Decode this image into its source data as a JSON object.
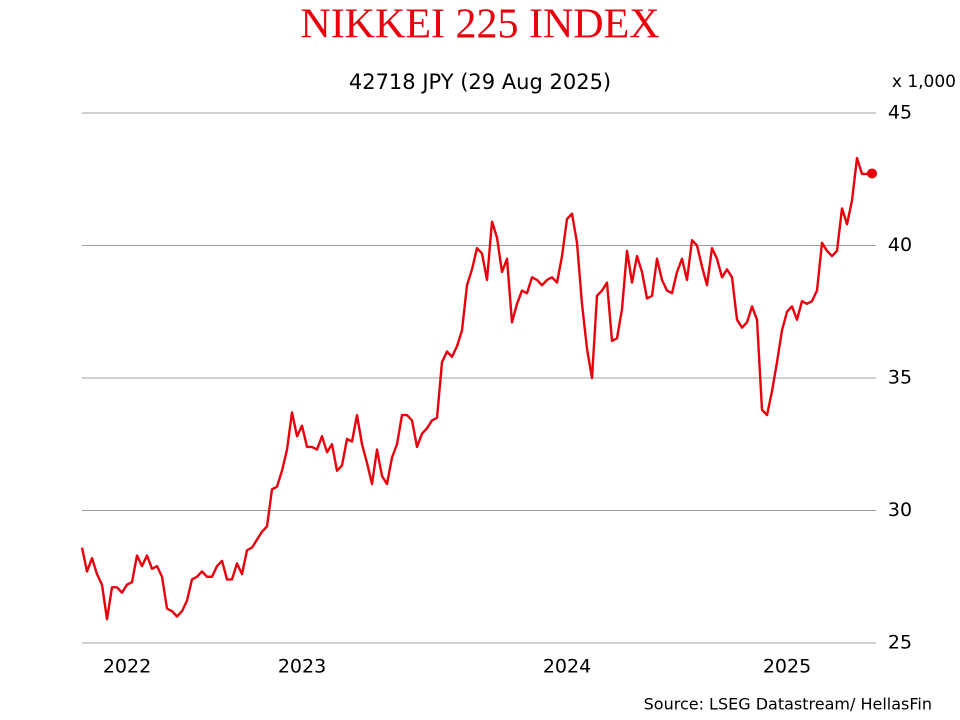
{
  "chart_data": {
    "type": "line",
    "title": "NIKKEI 225 INDEX",
    "subtitle": "42718 JPY (29 Aug 2025)",
    "y_unit_label": "x 1,000",
    "source": "Source: LSEG Datastream/ HellasFin",
    "color": "#e8000b",
    "marker_last": true,
    "grid": true,
    "ylim": [
      25,
      45
    ],
    "yticks": [
      25,
      30,
      35,
      40,
      45
    ],
    "categories": [
      null,
      null,
      null,
      null,
      null,
      null,
      null,
      null,
      null,
      "2022",
      null,
      null,
      null,
      null,
      null,
      null,
      null,
      null,
      null,
      null,
      null,
      null,
      null,
      null,
      null,
      null,
      null,
      null,
      null,
      null,
      null,
      null,
      null,
      null,
      null,
      null,
      null,
      null,
      null,
      null,
      null,
      null,
      null,
      null,
      "2023",
      null,
      null,
      null,
      null,
      null,
      null,
      null,
      null,
      null,
      null,
      null,
      null,
      null,
      null,
      null,
      null,
      null,
      null,
      null,
      null,
      null,
      null,
      null,
      null,
      null,
      null,
      null,
      null,
      null,
      null,
      null,
      null,
      null,
      null,
      null,
      null,
      null,
      null,
      null,
      null,
      null,
      null,
      null,
      null,
      null,
      null,
      null,
      null,
      null,
      null,
      null,
      null,
      "2024",
      null,
      null,
      null,
      null,
      null,
      null,
      null,
      null,
      null,
      null,
      null,
      null,
      null,
      null,
      null,
      null,
      null,
      null,
      null,
      null,
      null,
      null,
      null,
      null,
      null,
      null,
      null,
      null,
      null,
      null,
      null,
      null,
      null,
      null,
      null,
      null,
      null,
      null,
      null,
      null,
      null,
      null,
      null,
      "2025",
      null,
      null,
      null,
      null,
      null,
      null,
      null,
      null,
      null,
      null,
      null,
      null,
      null,
      null,
      null,
      null,
      null
    ],
    "values": [
      28.6,
      27.7,
      28.2,
      27.6,
      27.2,
      25.9,
      27.1,
      27.1,
      26.9,
      27.2,
      27.3,
      28.3,
      27.9,
      28.3,
      27.8,
      27.9,
      27.5,
      26.3,
      26.2,
      26.0,
      26.2,
      26.6,
      27.4,
      27.5,
      27.7,
      27.5,
      27.5,
      27.9,
      28.1,
      27.4,
      27.4,
      28.0,
      27.6,
      28.5,
      28.6,
      28.9,
      29.2,
      29.4,
      30.8,
      30.9,
      31.5,
      32.3,
      33.7,
      32.8,
      33.2,
      32.4,
      32.4,
      32.3,
      32.8,
      32.2,
      32.5,
      31.5,
      31.7,
      32.7,
      32.6,
      33.6,
      32.5,
      31.8,
      31.0,
      32.3,
      31.3,
      31.0,
      32.0,
      32.5,
      33.6,
      33.6,
      33.4,
      32.4,
      32.9,
      33.1,
      33.4,
      33.5,
      35.6,
      36.0,
      35.8,
      36.2,
      36.8,
      38.5,
      39.1,
      39.9,
      39.7,
      38.7,
      40.9,
      40.3,
      39.0,
      39.5,
      37.1,
      37.8,
      38.3,
      38.2,
      38.8,
      38.7,
      38.5,
      38.7,
      38.8,
      38.6,
      39.6,
      41.0,
      41.2,
      40.1,
      37.8,
      36.1,
      35.0,
      38.1,
      38.3,
      38.6,
      36.4,
      36.5,
      37.6,
      39.8,
      38.6,
      39.6,
      39.0,
      38.0,
      38.1,
      39.5,
      38.7,
      38.3,
      38.2,
      39.0,
      39.5,
      38.7,
      40.2,
      40.0,
      39.2,
      38.5,
      39.9,
      39.5,
      38.8,
      39.1,
      38.8,
      37.2,
      36.9,
      37.1,
      37.7,
      37.2,
      33.8,
      33.6,
      34.5,
      35.6,
      36.8,
      37.5,
      37.7,
      37.2,
      37.9,
      37.8,
      37.9,
      38.3,
      40.1,
      39.8,
      39.6,
      39.8,
      41.4,
      40.8,
      41.7,
      43.3,
      42.7,
      42.7,
      42.718
    ]
  }
}
